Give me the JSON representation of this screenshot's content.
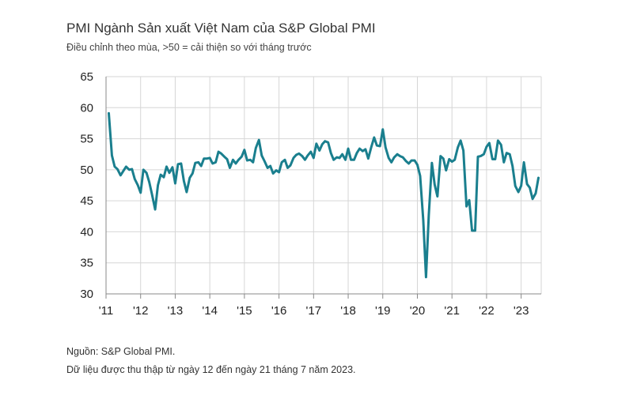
{
  "chart_data": {
    "type": "line",
    "title": "PMI Ngành Sản xuất Việt Nam của S&P Global PMI",
    "subtitle": "Điều chỉnh theo mùa, >50 = cải thiện so với tháng trước",
    "ylim": [
      30,
      65
    ],
    "yticks": [
      30,
      35,
      40,
      45,
      50,
      55,
      60,
      65
    ],
    "xlim": [
      2011.0,
      2023.58
    ],
    "xticks": [
      {
        "value": 2011.0,
        "label": "'11"
      },
      {
        "value": 2012.0,
        "label": "'12"
      },
      {
        "value": 2013.0,
        "label": "'13"
      },
      {
        "value": 2014.0,
        "label": "'14"
      },
      {
        "value": 2015.0,
        "label": "'15"
      },
      {
        "value": 2016.0,
        "label": "'16"
      },
      {
        "value": 2017.0,
        "label": "'17"
      },
      {
        "value": 2018.0,
        "label": "'18"
      },
      {
        "value": 2019.0,
        "label": "'19"
      },
      {
        "value": 2020.0,
        "label": "'20"
      },
      {
        "value": 2021.0,
        "label": "'21"
      },
      {
        "value": 2022.0,
        "label": "'22"
      },
      {
        "value": 2023.0,
        "label": "'23"
      }
    ],
    "grid": true,
    "line_color": "#1a7f8e",
    "series": [
      {
        "x": [
          2011.08,
          2011.17,
          2011.25,
          2011.33,
          2011.42,
          2011.5,
          2011.58,
          2011.67,
          2011.75,
          2011.83,
          2011.92,
          2012.0,
          2012.08,
          2012.17,
          2012.25,
          2012.33,
          2012.42,
          2012.5,
          2012.58,
          2012.67,
          2012.75,
          2012.83,
          2012.92,
          2013.0,
          2013.08,
          2013.17,
          2013.25,
          2013.33,
          2013.42,
          2013.5,
          2013.58,
          2013.67,
          2013.75,
          2013.83,
          2013.92,
          2014.0,
          2014.08,
          2014.17,
          2014.25,
          2014.33,
          2014.42,
          2014.5,
          2014.58,
          2014.67,
          2014.75,
          2014.83,
          2014.92,
          2015.0,
          2015.08,
          2015.17,
          2015.25,
          2015.33,
          2015.42,
          2015.5,
          2015.58,
          2015.67,
          2015.75,
          2015.83,
          2015.92,
          2016.0,
          2016.08,
          2016.17,
          2016.25,
          2016.33,
          2016.42,
          2016.5,
          2016.58,
          2016.67,
          2016.75,
          2016.83,
          2016.92,
          2017.0,
          2017.08,
          2017.17,
          2017.25,
          2017.33,
          2017.42,
          2017.5,
          2017.58,
          2017.67,
          2017.75,
          2017.83,
          2017.92,
          2018.0,
          2018.08,
          2018.17,
          2018.25,
          2018.33,
          2018.42,
          2018.5,
          2018.58,
          2018.67,
          2018.75,
          2018.83,
          2018.92,
          2019.0,
          2019.08,
          2019.17,
          2019.25,
          2019.33,
          2019.42,
          2019.5,
          2019.58,
          2019.67,
          2019.75,
          2019.83,
          2019.92,
          2020.0,
          2020.08,
          2020.17,
          2020.25,
          2020.33,
          2020.42,
          2020.5,
          2020.58,
          2020.67,
          2020.75,
          2020.83,
          2020.92,
          2021.0,
          2021.08,
          2021.17,
          2021.25,
          2021.33,
          2021.42,
          2021.5,
          2021.58,
          2021.67,
          2021.75,
          2021.83,
          2021.92,
          2022.0,
          2022.08,
          2022.17,
          2022.25,
          2022.33,
          2022.42,
          2022.5,
          2022.58,
          2022.67,
          2022.75,
          2022.83,
          2022.92,
          2023.0,
          2023.08,
          2023.17,
          2023.25,
          2023.33,
          2023.42,
          2023.5
        ],
        "y": [
          59.1,
          52.3,
          50.5,
          50.1,
          49.1,
          49.8,
          50.5,
          50.0,
          50.1,
          48.5,
          47.5,
          46.3,
          50.0,
          49.5,
          48.0,
          46.0,
          43.6,
          47.5,
          49.2,
          48.8,
          50.5,
          49.5,
          50.4,
          47.8,
          50.9,
          51.0,
          48.2,
          46.4,
          48.7,
          49.4,
          51.1,
          51.2,
          50.6,
          51.8,
          51.8,
          51.9,
          51.0,
          51.2,
          52.9,
          52.6,
          52.1,
          51.7,
          50.3,
          51.6,
          51.0,
          51.6,
          52.1,
          53.2,
          51.5,
          51.6,
          51.2,
          53.5,
          54.8,
          52.3,
          51.4,
          50.3,
          50.6,
          49.4,
          49.9,
          49.6,
          51.2,
          51.6,
          50.3,
          50.7,
          51.9,
          52.4,
          52.6,
          52.2,
          51.6,
          52.3,
          52.9,
          51.9,
          54.2,
          53.1,
          54.1,
          54.6,
          54.4,
          52.7,
          51.6,
          52.0,
          51.9,
          52.5,
          51.6,
          53.4,
          51.6,
          51.6,
          52.7,
          53.4,
          53.0,
          53.3,
          51.8,
          53.7,
          55.2,
          53.9,
          53.8,
          56.5,
          53.6,
          51.9,
          51.2,
          52.0,
          52.5,
          52.2,
          52.0,
          51.4,
          51.0,
          51.5,
          51.5,
          50.8,
          49.0,
          41.9,
          32.7,
          42.7,
          51.1,
          47.6,
          45.7,
          52.2,
          51.8,
          49.9,
          51.7,
          51.3,
          51.6,
          53.6,
          54.7,
          53.1,
          44.1,
          45.1,
          40.2,
          40.2,
          52.1,
          52.2,
          52.5,
          53.7,
          54.3,
          51.7,
          51.7,
          54.7,
          54.0,
          51.2,
          52.7,
          52.5,
          50.6,
          47.4,
          46.4,
          47.4,
          51.2,
          47.7,
          47.1,
          45.3,
          46.2,
          48.7
        ]
      }
    ]
  },
  "footnotes": {
    "source": "Nguồn: S&P Global PMI.",
    "collection": "Dữ liệu được thu thập từ ngày 12 đến ngày 21 tháng 7 năm 2023."
  }
}
